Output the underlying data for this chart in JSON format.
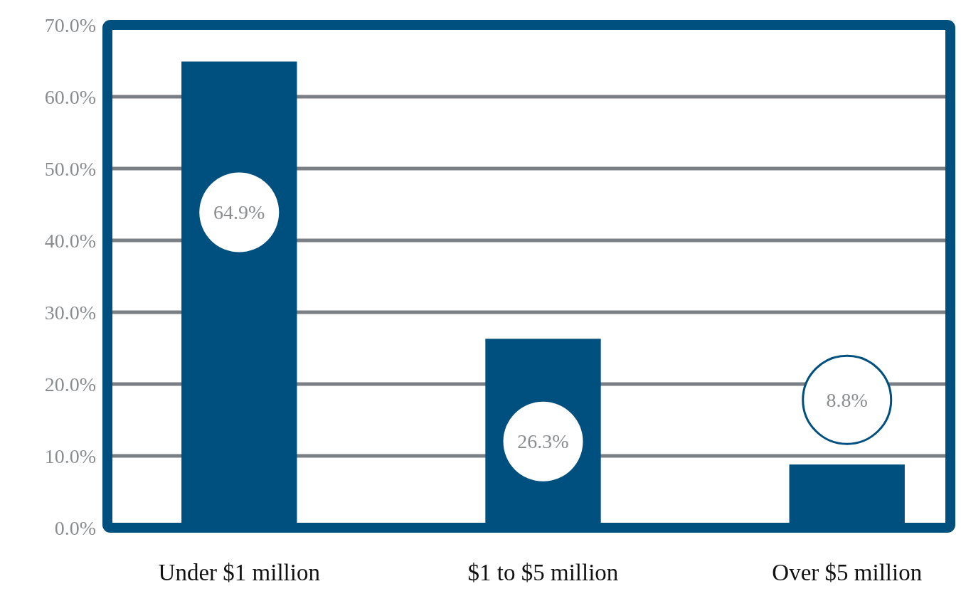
{
  "chart_data": {
    "type": "bar",
    "categories": [
      "Under $1 million",
      "$1 to $5 million",
      "Over $5 million"
    ],
    "values": [
      64.9,
      26.3,
      8.8
    ],
    "color": "#00507f",
    "ylim": [
      0,
      70
    ],
    "yticks": [
      {
        "value": 0,
        "label": "0.0%"
      },
      {
        "value": 10,
        "label": "10.0%"
      },
      {
        "value": 20,
        "label": "20.0%"
      },
      {
        "value": 30,
        "label": "30.0%"
      },
      {
        "value": 40,
        "label": "40.0%"
      },
      {
        "value": 50,
        "label": "50.0%"
      },
      {
        "value": 60,
        "label": "60.0%"
      },
      {
        "value": 70,
        "label": "70.0%"
      }
    ],
    "grid": "y",
    "value_labels": [
      "64.9%",
      "26.3%",
      "8.8%"
    ]
  }
}
